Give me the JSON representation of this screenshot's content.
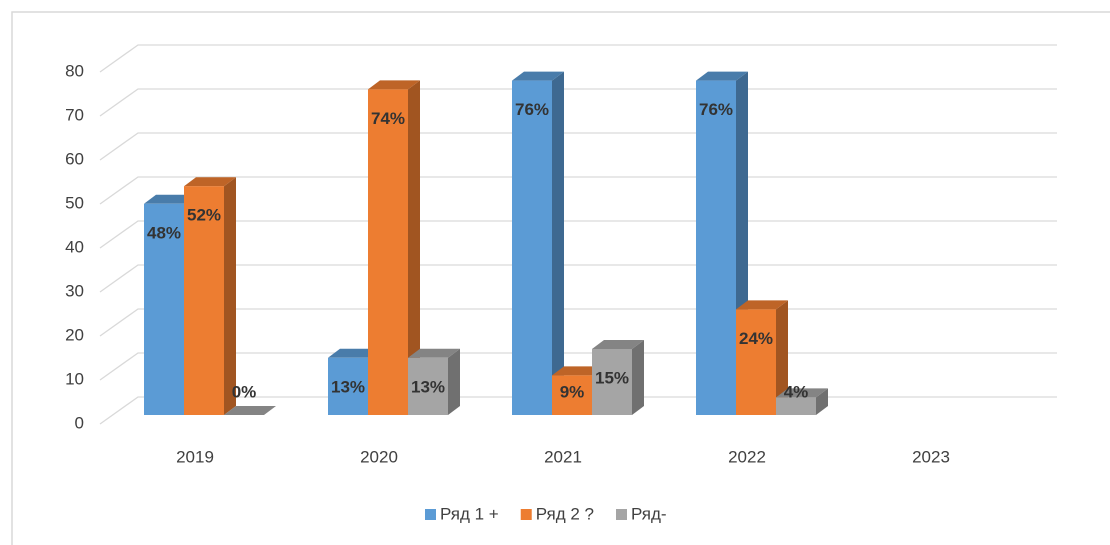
{
  "chart_data": {
    "type": "bar3d",
    "categories": [
      "2019",
      "2020",
      "2021",
      "2022",
      "2023"
    ],
    "series": [
      {
        "name": "Ряд 1 +",
        "color": "#5b9bd5",
        "values": [
          48,
          13,
          76,
          76,
          null
        ],
        "value_labels": [
          "48%",
          "13%",
          "76%",
          "76%",
          null
        ]
      },
      {
        "name": "Ряд 2 ?",
        "color": "#ed7d31",
        "values": [
          52,
          74,
          9,
          24,
          null
        ],
        "value_labels": [
          "52%",
          "74%",
          "9%",
          "24%",
          null
        ]
      },
      {
        "name": "Ряд-",
        "color": "#a5a5a5",
        "values": [
          0,
          13,
          15,
          4,
          null
        ],
        "value_labels": [
          "0%",
          "13%",
          "15%",
          "4%",
          null
        ]
      }
    ],
    "ylim": [
      0,
      80
    ],
    "yticks": [
      0,
      10,
      20,
      30,
      40,
      50,
      60,
      70,
      80
    ],
    "grid": true,
    "legend": "bottom"
  }
}
